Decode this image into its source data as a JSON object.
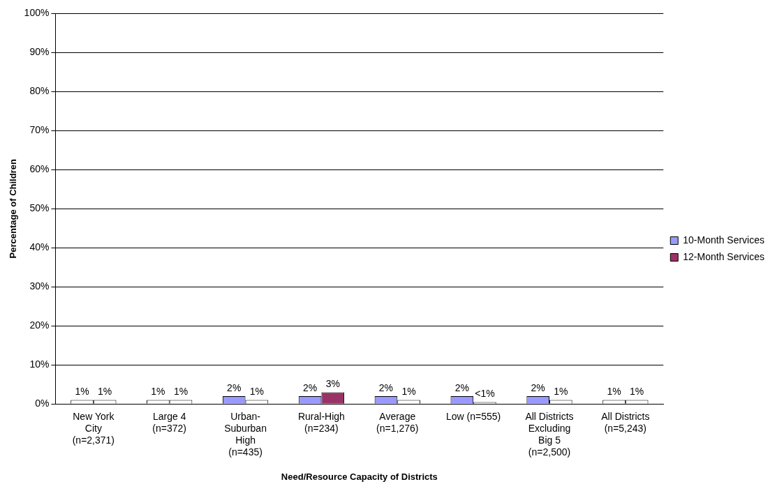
{
  "chart_data": {
    "type": "bar",
    "xlabel": "Need/Resource Capacity of Districts",
    "ylabel": "Percentage of Children",
    "categories": [
      "New York\nCity\n(n=2,371)",
      "Large 4\n(n=372)",
      "Urban-\nSuburban\nHigh\n(n=435)",
      "Rural-High\n(n=234)",
      "Average\n(n=1,276)",
      "Low (n=555)",
      "All Districts\nExcluding\nBig 5\n(n=2,500)",
      "All Districts\n(n=5,243)"
    ],
    "series": [
      {
        "name": "10-Month Services",
        "color": "#9999ff",
        "colors": [
          "#ffffff",
          "#ffffff",
          "#9999ff",
          "#9999ff",
          "#9999ff",
          "#9999ff",
          "#9999ff",
          "#ffffff"
        ],
        "values": [
          1,
          1,
          2,
          2,
          2,
          2,
          2,
          1
        ],
        "value_labels": [
          "1%",
          "1%",
          "2%",
          "2%",
          "2%",
          "2%",
          "2%",
          "1%"
        ]
      },
      {
        "name": "12-Month Services",
        "color": "#993366",
        "colors": [
          "#ffffff",
          "#ffffff",
          "#ffffff",
          "#993366",
          "#ffffff",
          "#ffffff",
          "#ffffff",
          "#ffffff"
        ],
        "values": [
          1,
          1,
          1,
          3,
          1,
          0.5,
          1,
          1
        ],
        "value_labels": [
          "1%",
          "1%",
          "1%",
          "3%",
          "1%",
          "<1%",
          "1%",
          "1%"
        ]
      }
    ],
    "ylim": [
      0,
      100
    ],
    "yticks": [
      {
        "value": 0,
        "label": "0%"
      },
      {
        "value": 10,
        "label": "10%"
      },
      {
        "value": 20,
        "label": "20%"
      },
      {
        "value": 30,
        "label": "30%"
      },
      {
        "value": 40,
        "label": "40%"
      },
      {
        "value": 50,
        "label": "50%"
      },
      {
        "value": 60,
        "label": "60%"
      },
      {
        "value": 70,
        "label": "70%"
      },
      {
        "value": 80,
        "label": "80%"
      },
      {
        "value": 90,
        "label": "90%"
      },
      {
        "value": 100,
        "label": "100%"
      }
    ],
    "grid": "y",
    "legend": "right"
  }
}
